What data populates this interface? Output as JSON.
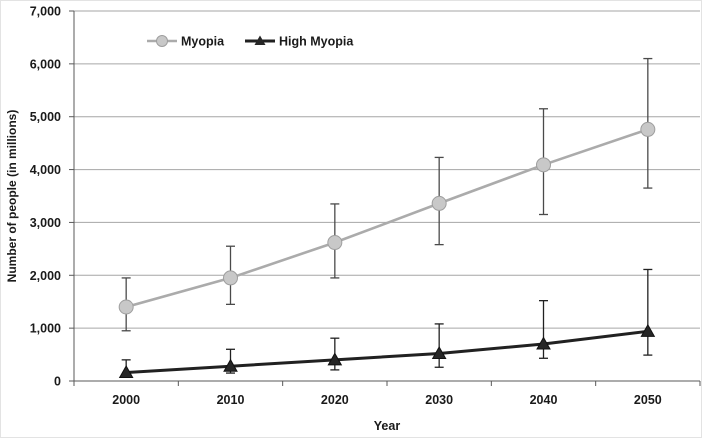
{
  "chart_data": {
    "type": "line",
    "title": "",
    "xlabel": "Year",
    "ylabel": "Number of people (in millions)",
    "categories": [
      "2000",
      "2010",
      "2020",
      "2030",
      "2040",
      "2050"
    ],
    "y_ticks": [
      "0",
      "1,000",
      "2,000",
      "3,000",
      "4,000",
      "5,000",
      "6,000",
      "7,000"
    ],
    "ylim": [
      0,
      7000
    ],
    "grid": true,
    "legend_position": "top-center",
    "colors": {
      "gridline": "#a6a6a6",
      "axis": "#595959",
      "text": "#1a1a1a"
    },
    "series": [
      {
        "name": "Myopia",
        "marker": "circle",
        "color": "#ababab",
        "marker_fill": "#c8c8c8",
        "marker_stroke": "#9e9e9e",
        "error_color": "#4a4a4a",
        "values": [
          1400,
          1950,
          2620,
          3360,
          4090,
          4760
        ],
        "ci_low": [
          950,
          1450,
          1950,
          2580,
          3150,
          3650
        ],
        "ci_high": [
          1950,
          2550,
          3350,
          4230,
          5150,
          6100
        ]
      },
      {
        "name": "High Myopia",
        "marker": "triangle",
        "color": "#212121",
        "marker_fill": "#262626",
        "marker_stroke": "#111111",
        "error_color": "#212121",
        "values": [
          160,
          280,
          400,
          520,
          700,
          940
        ],
        "ci_low": [
          70,
          150,
          210,
          260,
          430,
          490
        ],
        "ci_high": [
          400,
          600,
          810,
          1080,
          1520,
          2110
        ]
      }
    ]
  }
}
